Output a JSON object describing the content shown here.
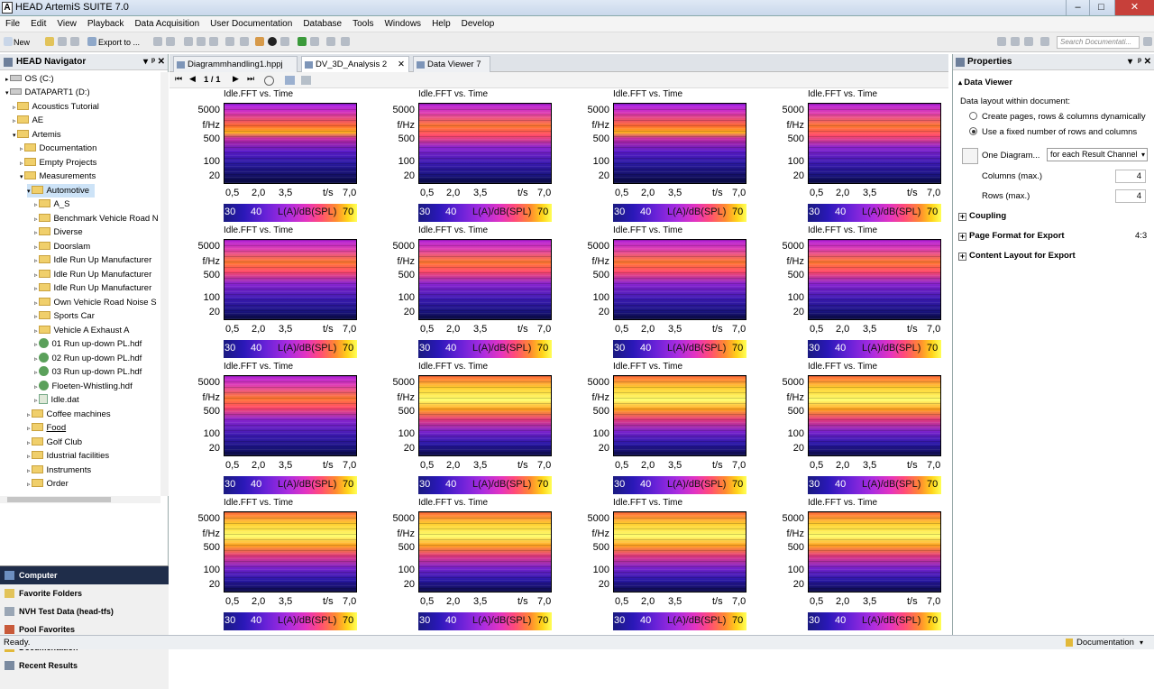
{
  "window": {
    "title": "HEAD ArtemiS SUITE 7.0",
    "logo": "A"
  },
  "menu": [
    "File",
    "Edit",
    "View",
    "Playback",
    "Data Acquisition",
    "User Documentation",
    "Database",
    "Tools",
    "Windows",
    "Help",
    "Develop"
  ],
  "toolbar": {
    "new_label": "New",
    "export_label": "Export to ...",
    "search_placeholder": "Search Documentati..."
  },
  "navigator": {
    "title": "HEAD Navigator",
    "items": [
      "OS (C:)",
      "DATAPART1 (D:)",
      "Acoustics Tutorial",
      "AE",
      "Artemis",
      "Documentation",
      "Empty Projects",
      "Measurements",
      "Automotive",
      "A_S",
      "Benchmark Vehicle Road N",
      "Diverse",
      "Doorslam",
      "Idle Run Up Manufacturer",
      "Idle Run Up Manufacturer",
      "Idle Run Up Manufacturer",
      "Own Vehicle Road Noise S",
      "Sports Car",
      "Vehicle A Exhaust A",
      "01 Run up-down PL.hdf",
      "02 Run up-down PL.hdf",
      "03 Run up-down PL.hdf",
      "Floeten-Whistling.hdf",
      "Idle.dat",
      "Coffee machines",
      "Food",
      "Golf Club",
      "Idustrial facilities",
      "Instruments",
      "Order"
    ],
    "shortcuts": [
      "Computer",
      "Favorite Folders",
      "NVH Test Data (head-tfs)",
      "Pool Favorites",
      "Documentation",
      "Recent Results"
    ]
  },
  "tabs": [
    "Diagrammhandling1.hppj",
    "DV_3D_Analysis 2",
    "Data Viewer 7"
  ],
  "viewer": {
    "page_indicator": "1 / 1"
  },
  "diagram": {
    "title": "Idle.FFT vs. Time",
    "y_ticks": [
      "5000",
      "f/Hz",
      "500",
      "100",
      "20"
    ],
    "x_ticks": [
      "0,5",
      "2,0",
      "3,5",
      "t/s",
      "7,0"
    ],
    "cbar_ticks": [
      "30",
      "40",
      "L(A)/dB(SPL)",
      "70"
    ],
    "count": 16
  },
  "properties": {
    "title": "Properties",
    "section": "Data Viewer",
    "layout_label": "Data layout within document:",
    "option1": "Create pages, rows & columns dynamically",
    "option2": "Use a fixed number of rows and columns",
    "one_diagram_label": "One Diagram...",
    "one_diagram_value": "for each Result Channel",
    "columns_label": "Columns (max.)",
    "columns_value": "4",
    "rows_label": "Rows (max.)",
    "rows_value": "4",
    "coupling": "Coupling",
    "page_format": "Page Format for Export",
    "page_format_value": "4:3",
    "content_layout": "Content Layout for Export"
  },
  "status": {
    "text": "Ready.",
    "right": "Documentation"
  },
  "colors": {
    "accent": "#1f2d4a",
    "spectrogram_low": "#10105a",
    "spectrogram_high": "#ffff58"
  }
}
